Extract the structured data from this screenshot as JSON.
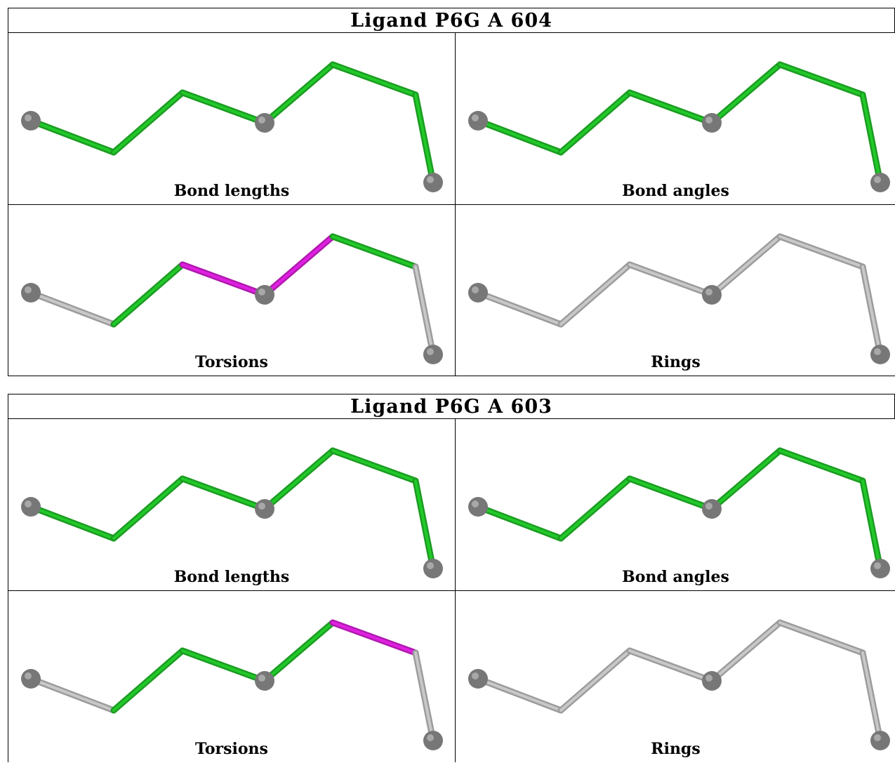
{
  "ligands": [
    {
      "title": "Ligand P6G A 604",
      "panels": [
        {
          "label": "Bond lengths",
          "bond_colors": [
            "green",
            "green",
            "green",
            "green",
            "green",
            "green"
          ]
        },
        {
          "label": "Bond angles",
          "bond_colors": [
            "green",
            "green",
            "green",
            "green",
            "green",
            "green"
          ]
        },
        {
          "label": "Torsions",
          "bond_colors": [
            "gray",
            "green",
            "magenta",
            "magenta",
            "green",
            "gray"
          ]
        },
        {
          "label": "Rings",
          "bond_colors": [
            "gray",
            "gray",
            "gray",
            "gray",
            "gray",
            "gray"
          ]
        }
      ]
    },
    {
      "title": "Ligand P6G A 603",
      "panels": [
        {
          "label": "Bond lengths",
          "bond_colors": [
            "green",
            "green",
            "green",
            "green",
            "green",
            "green"
          ]
        },
        {
          "label": "Bond angles",
          "bond_colors": [
            "green",
            "green",
            "green",
            "green",
            "green",
            "green"
          ]
        },
        {
          "label": "Torsions",
          "bond_colors": [
            "gray",
            "green",
            "green",
            "green",
            "magenta",
            "gray"
          ]
        },
        {
          "label": "Rings",
          "bond_colors": [
            "gray",
            "gray",
            "gray",
            "gray",
            "gray",
            "gray"
          ]
        }
      ]
    }
  ],
  "colors": {
    "green": "#22c82a",
    "magenta": "#e020e0",
    "gray": "#c8c8c8",
    "atom": "#777777"
  }
}
